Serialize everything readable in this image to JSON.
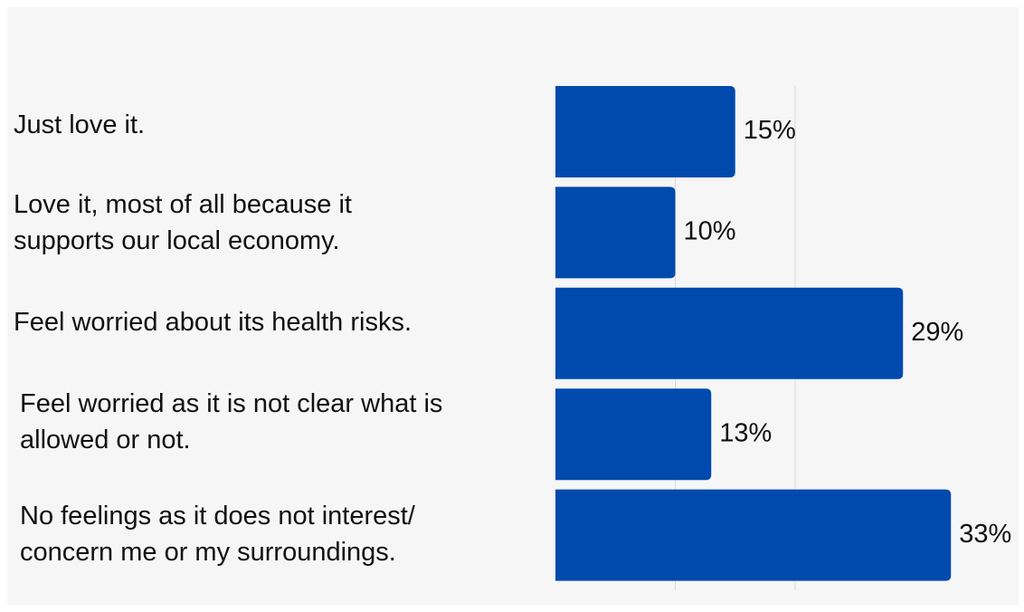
{
  "colors": {
    "bar": "#004aad",
    "grid": "#d9d9d9",
    "background": "#f6f6f6"
  },
  "chart_data": {
    "type": "bar",
    "orientation": "horizontal",
    "categories": [
      "Just love it.",
      "Love it, most of all because it\nsupports our local economy.",
      "Feel worried about its health risks.",
      "Feel worried as it is not clear what is\nallowed or not.",
      "No feelings as it does not interest/\nconcern me or my surroundings."
    ],
    "values": [
      15,
      10,
      29,
      13,
      33
    ],
    "value_labels": [
      "15%",
      "10%",
      "29%",
      "13%",
      "33%"
    ],
    "xlim": [
      0,
      35
    ],
    "grid": true,
    "title": "",
    "xlabel": "",
    "ylabel": ""
  }
}
